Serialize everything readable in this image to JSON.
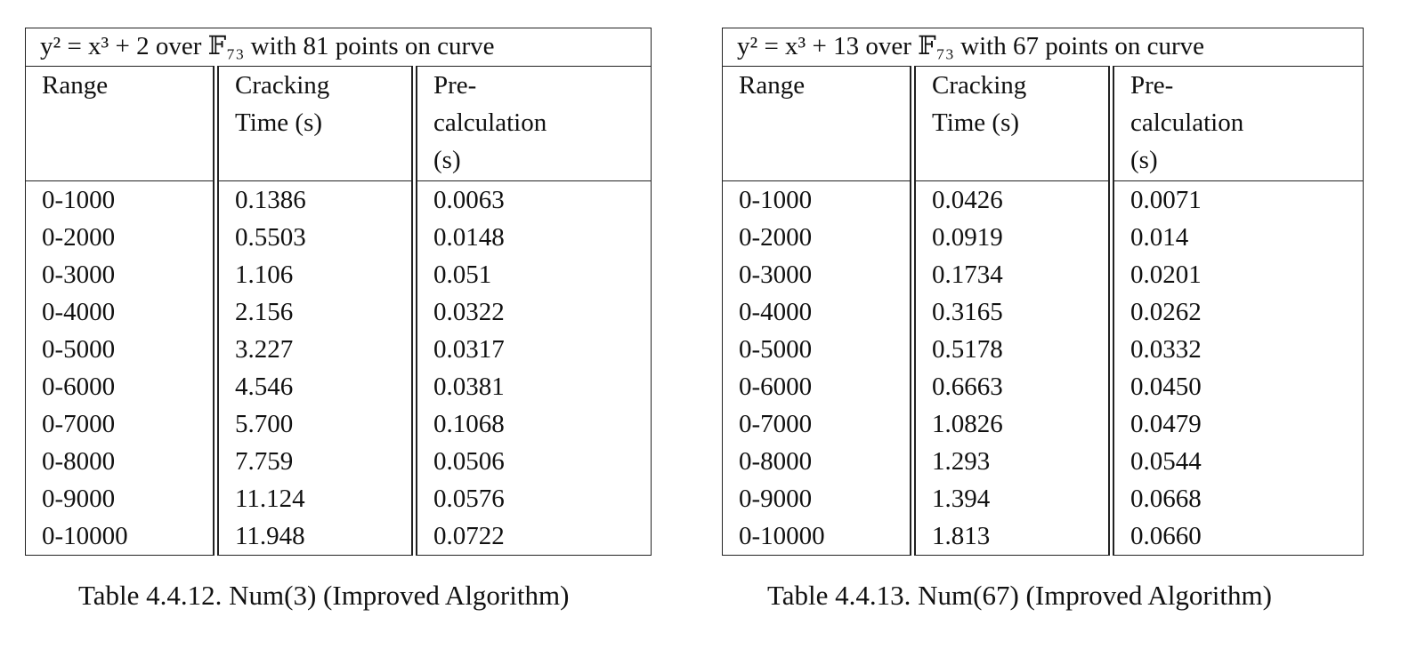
{
  "tables": [
    {
      "title": "y² = x³ + 2 over 𝔽₇₃ with 81 points on curve",
      "headers": [
        "Range",
        "Cracking\nTime (s)",
        "Pre-\ncalculation\n(s)"
      ],
      "rows": [
        [
          "0-1000",
          "0.1386",
          "0.0063"
        ],
        [
          "0-2000",
          "0.5503",
          "0.0148"
        ],
        [
          "0-3000",
          "1.106",
          "0.051"
        ],
        [
          "0-4000",
          "2.156",
          "0.0322"
        ],
        [
          "0-5000",
          "3.227",
          "0.0317"
        ],
        [
          "0-6000",
          "4.546",
          "0.0381"
        ],
        [
          "0-7000",
          "5.700",
          "0.1068"
        ],
        [
          "0-8000",
          "7.759",
          "0.0506"
        ],
        [
          "0-9000",
          "11.124",
          "0.0576"
        ],
        [
          "0-10000",
          "11.948",
          "0.0722"
        ]
      ],
      "caption": "Table 4.4.12. Num(3) (Improved Algorithm)"
    },
    {
      "title": "y² = x³ + 13 over 𝔽₇₃ with 67 points on curve",
      "headers": [
        "Range",
        "Cracking\nTime (s)",
        "Pre-\ncalculation\n(s)"
      ],
      "rows": [
        [
          "0-1000",
          "0.0426",
          "0.0071"
        ],
        [
          "0-2000",
          "0.0919",
          "0.014"
        ],
        [
          "0-3000",
          "0.1734",
          "0.0201"
        ],
        [
          "0-4000",
          "0.3165",
          "0.0262"
        ],
        [
          "0-5000",
          "0.5178",
          "0.0332"
        ],
        [
          "0-6000",
          "0.6663",
          "0.0450"
        ],
        [
          "0-7000",
          "1.0826",
          "0.0479"
        ],
        [
          "0-8000",
          "1.293",
          "0.0544"
        ],
        [
          "0-9000",
          "1.394",
          "0.0668"
        ],
        [
          "0-10000",
          "1.813",
          "0.0660"
        ]
      ],
      "caption": "Table 4.4.13. Num(67) (Improved Algorithm)"
    }
  ]
}
